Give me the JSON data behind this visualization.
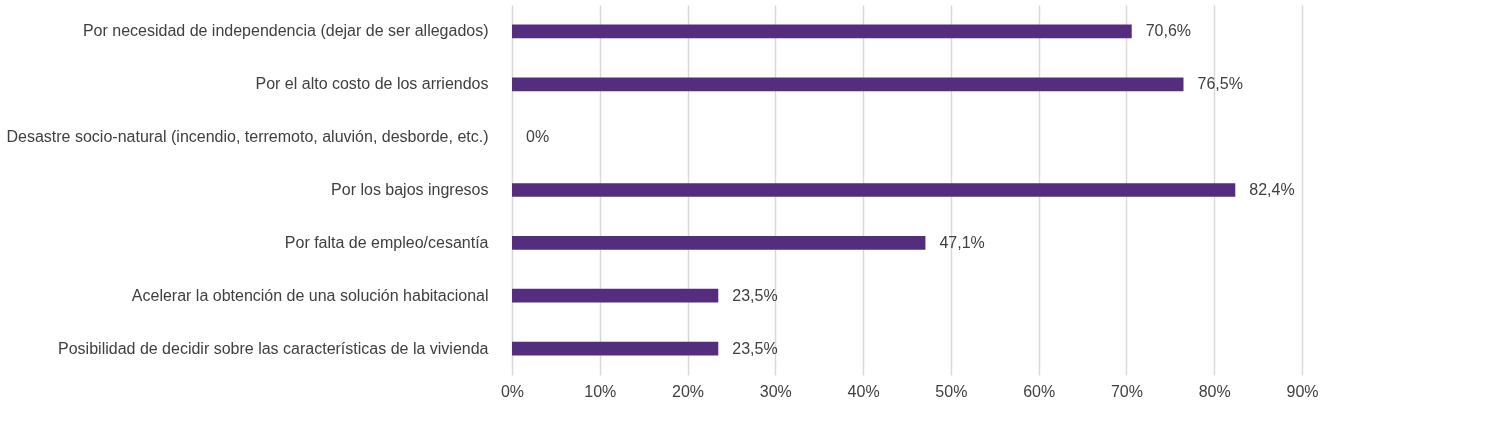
{
  "chart_data": {
    "type": "bar",
    "orientation": "horizontal",
    "categories": [
      "Por necesidad de independencia (dejar de ser allegados)",
      "Por el alto costo de los arriendos",
      "Desastre socio-natural (incendio, terremoto, aluvión, desborde, etc.)",
      "Por los bajos ingresos",
      "Por falta de empleo/cesantía",
      "Acelerar la obtención de una solución habitacional",
      "Posibilidad de decidir sobre las características de la vivienda"
    ],
    "values": [
      70.6,
      76.5,
      0,
      82.4,
      47.1,
      23.5,
      23.5
    ],
    "value_labels": [
      "70,6%",
      "76,5%",
      "0%",
      "82,4%",
      "47,1%",
      "23,5%",
      "23,5%"
    ],
    "color": "#552d7f",
    "xlim": [
      0,
      90
    ],
    "xticks": [
      {
        "value": 0,
        "label": "0%"
      },
      {
        "value": 10,
        "label": "10%"
      },
      {
        "value": 20,
        "label": "20%"
      },
      {
        "value": 30,
        "label": "30%"
      },
      {
        "value": 40,
        "label": "40%"
      },
      {
        "value": 50,
        "label": "50%"
      },
      {
        "value": 60,
        "label": "60%"
      },
      {
        "value": 70,
        "label": "70%"
      },
      {
        "value": 80,
        "label": "80%"
      },
      {
        "value": 90,
        "label": "90%"
      }
    ],
    "grid": "x"
  }
}
